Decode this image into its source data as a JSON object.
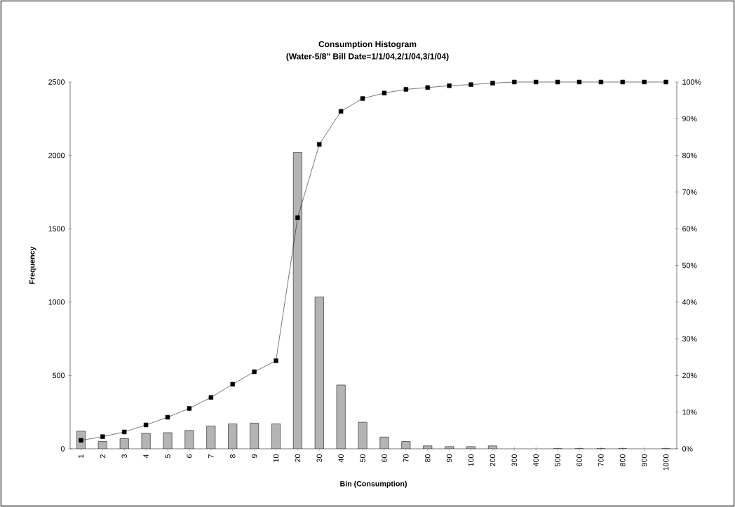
{
  "chart_data": {
    "type": "bar",
    "title": "Consumption Histogram",
    "subtitle": "(Water-5/8\"  Bill Date=1/1/04,2/1/04,3/1/04)",
    "xlabel": "Bin (Consumption)",
    "ylabel": "Frequency",
    "categories": [
      "1",
      "2",
      "3",
      "4",
      "5",
      "6",
      "7",
      "8",
      "9",
      "10",
      "20",
      "30",
      "40",
      "50",
      "60",
      "70",
      "80",
      "90",
      "100",
      "200",
      "300",
      "400",
      "500",
      "600",
      "700",
      "800",
      "900",
      "1000"
    ],
    "series": [
      {
        "color": "#b4b4b4",
        "values": [
          120,
          50,
          70,
          105,
          110,
          125,
          155,
          170,
          175,
          170,
          2020,
          1035,
          435,
          181,
          80,
          50,
          20,
          15,
          15,
          20,
          null,
          null,
          0,
          0,
          0,
          0,
          null,
          0
        ]
      },
      {
        "type": "line",
        "axis": "y2",
        "color": "#000000",
        "values": [
          2.3,
          3.3,
          4.6,
          6.5,
          8.6,
          11,
          14,
          17.6,
          21,
          24,
          63,
          83,
          92,
          95.5,
          97,
          98,
          98.5,
          99,
          99.3,
          99.7,
          100,
          100,
          100,
          100,
          100,
          100,
          100,
          100
        ]
      }
    ],
    "ylim": [
      0,
      2500
    ],
    "yticks": [
      0,
      500,
      1000,
      1500,
      2000,
      2500
    ],
    "y2lim": [
      0,
      100
    ],
    "y2ticks": [
      {
        "value": 0,
        "label": "0%"
      },
      {
        "value": 10,
        "label": "10%"
      },
      {
        "value": 20,
        "label": "20%"
      },
      {
        "value": 30,
        "label": "30%"
      },
      {
        "value": 40,
        "label": "40%"
      },
      {
        "value": 50,
        "label": "50%"
      },
      {
        "value": 60,
        "label": "60%"
      },
      {
        "value": 70,
        "label": "70%"
      },
      {
        "value": 80,
        "label": "80%"
      },
      {
        "value": 90,
        "label": "90%"
      },
      {
        "value": 100,
        "label": "100%"
      }
    ],
    "grid": false,
    "marker": "square",
    "line_style": "solid"
  }
}
